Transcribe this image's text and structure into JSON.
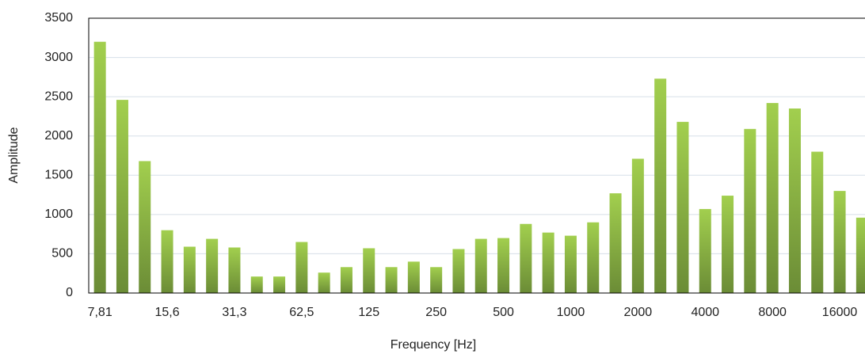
{
  "chart_data": {
    "type": "bar",
    "x_label": "Frequency [Hz]",
    "y_label": "Amplitude",
    "categories": [
      "7,81",
      null,
      null,
      "15,6",
      null,
      null,
      "31,3",
      null,
      null,
      "62,5",
      null,
      null,
      "125",
      null,
      null,
      "250",
      null,
      null,
      "500",
      null,
      null,
      "1000",
      null,
      null,
      "2000",
      null,
      null,
      "4000",
      null,
      null,
      "8000",
      null,
      null,
      "16000",
      null
    ],
    "values": [
      3200,
      2460,
      1680,
      800,
      590,
      690,
      580,
      210,
      210,
      650,
      260,
      330,
      570,
      330,
      400,
      330,
      560,
      690,
      700,
      880,
      770,
      730,
      900,
      1270,
      1710,
      2730,
      2180,
      1070,
      1240,
      2090,
      2420,
      2350,
      1800,
      1300,
      960
    ],
    "color": "#8db544",
    "ylim": [
      0,
      3500
    ],
    "yticks": [
      0,
      500,
      1000,
      1500,
      2000,
      2500,
      3000,
      3500
    ],
    "grid": true
  }
}
